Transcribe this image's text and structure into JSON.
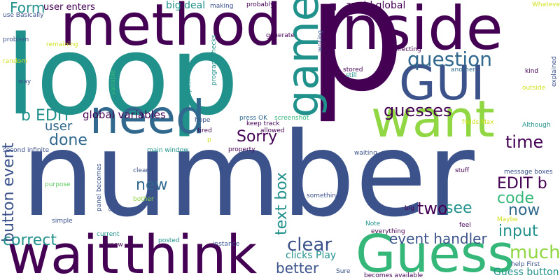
{
  "palette": {
    "dark_purple": "#440154",
    "indigo": "#3b528b",
    "blue": "#31688e",
    "teal": "#21918c",
    "sea_green": "#35b779",
    "green": "#5ec962",
    "lime": "#90d743",
    "yellow": "#d0e11c"
  },
  "words": [
    {
      "text": "p",
      "color": "dark_purple"
    },
    {
      "text": "number",
      "color": "indigo"
    },
    {
      "text": "loop",
      "color": "teal"
    },
    {
      "text": "inside",
      "color": "dark_purple"
    },
    {
      "text": "method",
      "color": "dark_purple"
    },
    {
      "text": "want",
      "color": "lime"
    },
    {
      "text": "game",
      "color": "teal"
    },
    {
      "text": "need",
      "color": "blue"
    },
    {
      "text": "GUI",
      "color": "indigo"
    },
    {
      "text": "think",
      "color": "dark_purple"
    },
    {
      "text": "wait",
      "color": "dark_purple"
    },
    {
      "text": "Guess",
      "color": "sea_green"
    },
    {
      "text": "question",
      "color": "blue"
    },
    {
      "text": "guesses",
      "color": "dark_purple"
    },
    {
      "text": "time",
      "color": "dark_purple"
    },
    {
      "text": "Sorry",
      "color": "dark_purple"
    },
    {
      "text": "done",
      "color": "blue"
    },
    {
      "text": "user",
      "color": "blue"
    },
    {
      "text": "Form",
      "color": "teal"
    },
    {
      "text": "b EDIT",
      "color": "teal"
    },
    {
      "text": "global variables",
      "color": "dark_purple"
    },
    {
      "text": "button event",
      "color": "indigo"
    },
    {
      "text": "text box",
      "color": "teal"
    },
    {
      "text": "new",
      "color": "blue"
    },
    {
      "text": "two",
      "color": "dark_purple"
    },
    {
      "text": "see",
      "color": "teal"
    },
    {
      "text": "code",
      "color": "sea_green"
    },
    {
      "text": "now",
      "color": "blue"
    },
    {
      "text": "EDIT b",
      "color": "dark_purple"
    },
    {
      "text": "input",
      "color": "teal"
    },
    {
      "text": "much",
      "color": "lime"
    },
    {
      "text": "clear",
      "color": "indigo"
    },
    {
      "text": "event handler",
      "color": "indigo"
    },
    {
      "text": "correct",
      "color": "teal"
    },
    {
      "text": "better",
      "color": "indigo"
    },
    {
      "text": "Guess button",
      "color": "teal"
    },
    {
      "text": "clicks Play",
      "color": "teal"
    },
    {
      "text": "avoid global",
      "color": "dark_purple"
    },
    {
      "text": "big deal",
      "color": "teal"
    },
    {
      "text": "user enters",
      "color": "dark_purple"
    },
    {
      "text": "screenshot",
      "color": "sea_green"
    },
    {
      "text": "press OK",
      "color": "blue"
    },
    {
      "text": "probably",
      "color": "dark_purple"
    },
    {
      "text": "making",
      "color": "indigo"
    },
    {
      "text": "Whatever",
      "color": "yellow"
    },
    {
      "text": "use Basically",
      "color": "indigo"
    },
    {
      "text": "problem",
      "color": "indigo"
    },
    {
      "text": "remaining",
      "color": "yellow"
    },
    {
      "text": "random",
      "color": "yellow"
    },
    {
      "text": "way",
      "color": "indigo"
    },
    {
      "text": "generate",
      "color": "dark_purple"
    },
    {
      "text": "writing",
      "color": "indigo"
    },
    {
      "text": "directing",
      "color": "dark_purple"
    },
    {
      "text": "another",
      "color": "blue"
    },
    {
      "text": "stored",
      "color": "dark_purple"
    },
    {
      "text": "still",
      "color": "teal"
    },
    {
      "text": "kind",
      "color": "dark_purple"
    },
    {
      "text": "explained",
      "color": "indigo"
    },
    {
      "text": "outside",
      "color": "yellow"
    },
    {
      "text": "Although",
      "color": "teal"
    },
    {
      "text": "fields Max",
      "color": "yellow"
    },
    {
      "text": "allowed",
      "color": "dark_purple"
    },
    {
      "text": "keep track",
      "color": "dark_purple"
    },
    {
      "text": "hope",
      "color": "indigo"
    },
    {
      "text": "tired",
      "color": "dark_purple"
    },
    {
      "text": "post",
      "color": "teal"
    },
    {
      "text": "program checks",
      "color": "teal"
    },
    {
      "text": "variable",
      "color": "sea_green"
    },
    {
      "text": "second infinite",
      "color": "indigo"
    },
    {
      "text": "main window",
      "color": "teal"
    },
    {
      "text": "property",
      "color": "dark_purple"
    },
    {
      "text": "waiting",
      "color": "indigo"
    },
    {
      "text": "stuff",
      "color": "dark_purple"
    },
    {
      "text": "message boxes",
      "color": "indigo"
    },
    {
      "text": "purpose",
      "color": "green"
    },
    {
      "text": "bother",
      "color": "lime"
    },
    {
      "text": "clearer",
      "color": "indigo"
    },
    {
      "text": "panel becomes",
      "color": "indigo"
    },
    {
      "text": "called multiple",
      "color": "indigo"
    },
    {
      "text": "something",
      "color": "indigo"
    },
    {
      "text": "simple",
      "color": "indigo"
    },
    {
      "text": "current",
      "color": "teal"
    },
    {
      "text": "know",
      "color": "dark_purple"
    },
    {
      "text": "posted",
      "color": "teal"
    },
    {
      "text": "instance",
      "color": "indigo"
    },
    {
      "text": "Note",
      "color": "teal"
    },
    {
      "text": "everything",
      "color": "dark_purple"
    },
    {
      "text": "big",
      "color": "dark_purple"
    },
    {
      "text": "feel",
      "color": "dark_purple"
    },
    {
      "text": "Maybe",
      "color": "yellow"
    },
    {
      "text": "help First",
      "color": "indigo"
    },
    {
      "text": "Sure",
      "color": "indigo"
    },
    {
      "text": "becomes available",
      "color": "dark_purple"
    },
    {
      "text": "p",
      "color": "yellow"
    }
  ]
}
